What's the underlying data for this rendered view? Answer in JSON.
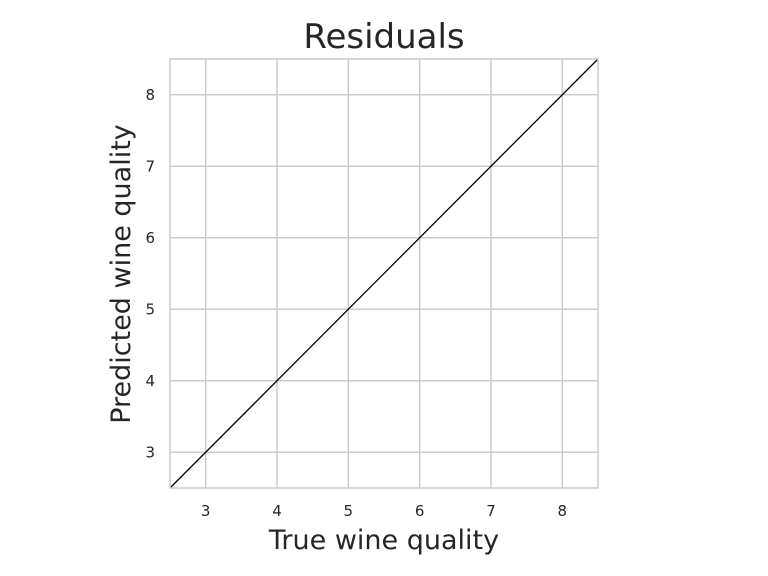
{
  "chart_data": {
    "type": "line",
    "title": "Residuals",
    "xlabel": "True wine quality",
    "ylabel": "Predicted wine quality",
    "xlim": [
      2.5,
      8.5
    ],
    "ylim": [
      2.5,
      8.5
    ],
    "x_ticks": [
      3,
      4,
      5,
      6,
      7,
      8
    ],
    "y_ticks": [
      3,
      4,
      5,
      6,
      7,
      8
    ],
    "grid": true,
    "series": [
      {
        "x": [
          2.5,
          8.5
        ],
        "y": [
          2.5,
          8.5
        ],
        "color": "#000000"
      }
    ]
  }
}
